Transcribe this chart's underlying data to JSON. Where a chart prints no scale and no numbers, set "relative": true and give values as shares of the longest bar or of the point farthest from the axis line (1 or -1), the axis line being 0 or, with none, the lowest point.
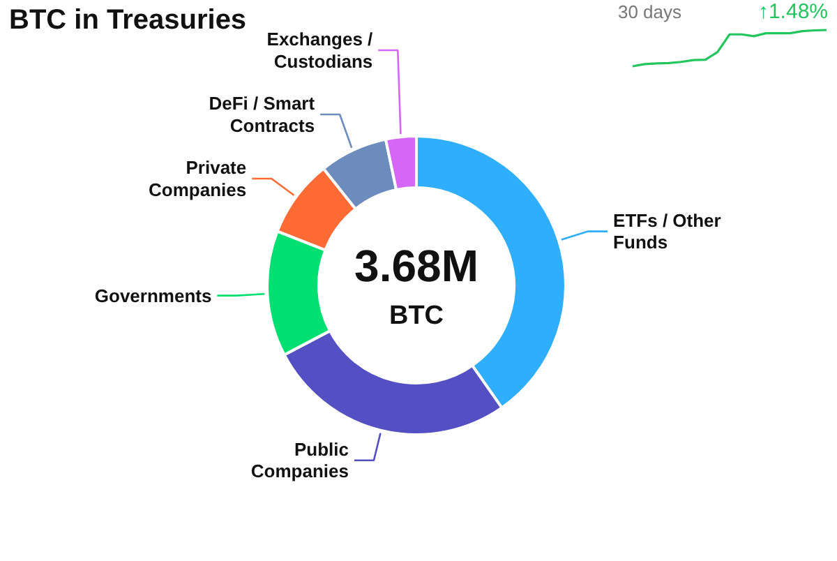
{
  "chart_data": [
    {
      "type": "donut",
      "title": "BTC in Treasuries",
      "categories": [
        "ETFs / Other Funds",
        "Public Companies",
        "Governments",
        "Private Companies",
        "DeFi / Smart Contracts",
        "Exchanges / Custodians"
      ],
      "values": [
        40.3,
        27.0,
        13.6,
        8.4,
        7.4,
        3.3
      ],
      "colors": [
        "#2eaefc",
        "#5450c4",
        "#00e070",
        "#ff6a35",
        "#6b8cbd",
        "#d666f5"
      ],
      "annotations": [
        "3.68M",
        "BTC"
      ]
    },
    {
      "type": "line",
      "title": "30 days",
      "relative": true,
      "categories": [
        null,
        null,
        null,
        null,
        null,
        null,
        null,
        null,
        null,
        null,
        null,
        null,
        null,
        null,
        null,
        null,
        null
      ],
      "series": [
        {
          "color": "#22c55e",
          "values": [
            0,
            0.06,
            0.08,
            0.09,
            0.12,
            0.17,
            0.18,
            0.39,
            0.88,
            0.88,
            0.83,
            0.91,
            0.91,
            0.91,
            0.97,
            0.99,
            1
          ]
        }
      ],
      "annotations": [
        "↑1.48%"
      ]
    }
  ]
}
